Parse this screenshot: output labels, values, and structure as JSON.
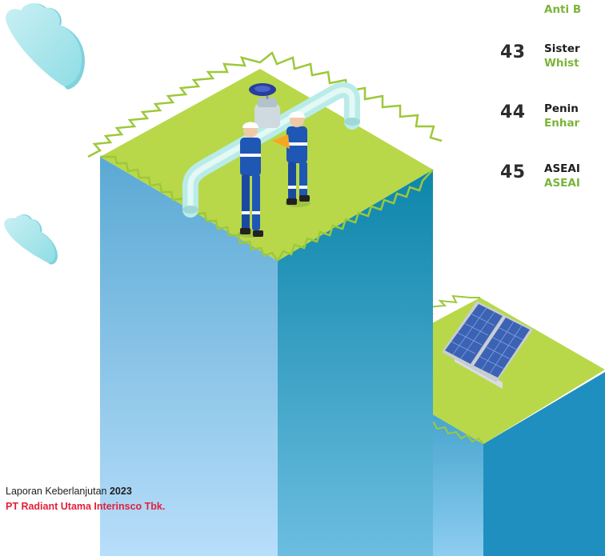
{
  "toc": {
    "top_en": "Anti B",
    "rows": [
      {
        "num": "43",
        "id": "Sister",
        "en": "Whist"
      },
      {
        "num": "44",
        "id": "Penin",
        "en": "Enhar"
      },
      {
        "num": "45",
        "id": "ASEAI",
        "en": "ASEAI"
      }
    ]
  },
  "footer": {
    "report_label": "Laporan Keberlanjutan",
    "year": "2023",
    "company": "PT Radiant Utama Interinsco Tbk."
  },
  "colors": {
    "accent_green": "#7ab538",
    "accent_red": "#e21f3b",
    "text_dark": "#1e1e1e"
  }
}
